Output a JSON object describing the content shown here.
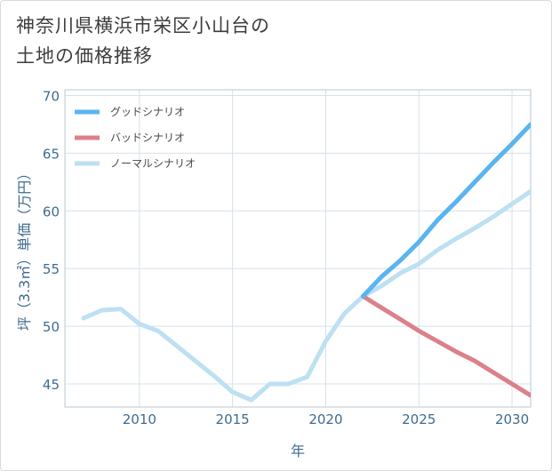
{
  "title": {
    "line1": "神奈川県横浜市栄区小山台の",
    "line2": "土地の価格推移"
  },
  "chart_data": {
    "type": "line",
    "xlabel": "年",
    "ylabel": "坪（3.3㎡）単価（万円）",
    "xlim": [
      2006,
      2031
    ],
    "ylim": [
      43,
      70.5
    ],
    "xticks": [
      2010,
      2015,
      2020,
      2025,
      2030
    ],
    "yticks": [
      45,
      50,
      55,
      60,
      65,
      70
    ],
    "grid": true,
    "legend_position": "top-left",
    "series": [
      {
        "name": "グッドシナリオ",
        "color": "#5ab4f0",
        "x": [
          2022,
          2023,
          2024,
          2025,
          2026,
          2027,
          2028,
          2029,
          2030,
          2031
        ],
        "values": [
          52.6,
          54.3,
          55.7,
          57.3,
          59.2,
          60.8,
          62.5,
          64.2,
          65.8,
          67.5
        ]
      },
      {
        "name": "バッドシナリオ",
        "color": "#dc8089",
        "x": [
          2022,
          2023,
          2024,
          2025,
          2026,
          2027,
          2028,
          2029,
          2030,
          2031
        ],
        "values": [
          52.6,
          51.6,
          50.6,
          49.6,
          48.7,
          47.8,
          47.0,
          46.0,
          45.0,
          44.0
        ]
      },
      {
        "name": "ノーマルシナリオ",
        "color": "#bde0f2",
        "x": [
          2007,
          2008,
          2009,
          2010,
          2011,
          2012,
          2013,
          2014,
          2015,
          2016,
          2017,
          2018,
          2019,
          2020,
          2021,
          2022,
          2023,
          2024,
          2025,
          2026,
          2027,
          2028,
          2029,
          2030,
          2031
        ],
        "values": [
          50.7,
          51.4,
          51.5,
          50.2,
          49.6,
          48.3,
          47.0,
          45.7,
          44.3,
          43.6,
          45.0,
          45.0,
          45.6,
          48.7,
          51.1,
          52.6,
          53.5,
          54.6,
          55.4,
          56.6,
          57.6,
          58.5,
          59.5,
          60.6,
          61.7
        ]
      }
    ]
  }
}
